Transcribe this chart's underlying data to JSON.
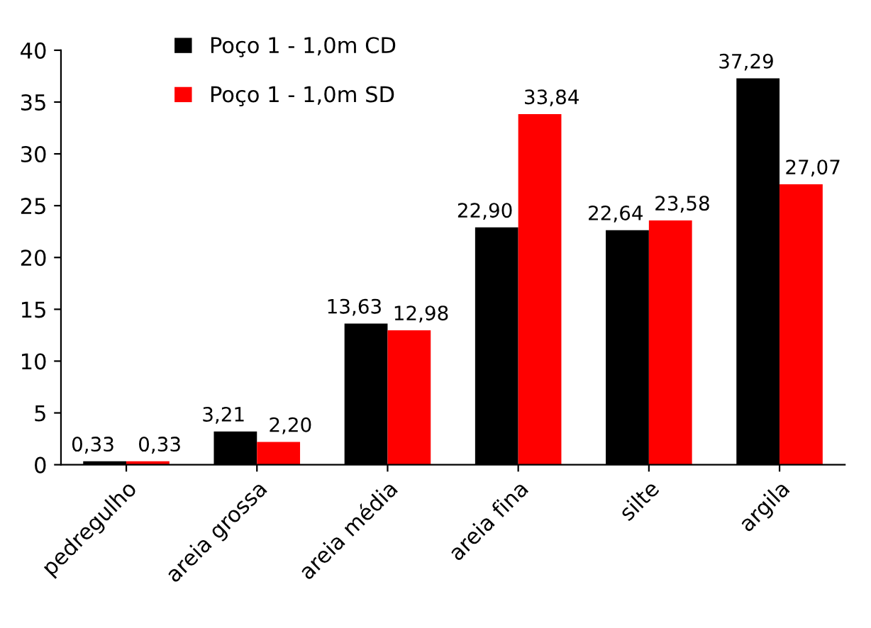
{
  "chart_data": {
    "type": "bar",
    "categories": [
      "pedregulho",
      "areia grossa",
      "areia média",
      "areia fina",
      "silte",
      "argila"
    ],
    "series": [
      {
        "name": "Poço 1 - 1,0m CD",
        "color": "#000000",
        "values": [
          0.33,
          3.21,
          13.63,
          22.9,
          22.64,
          37.29
        ],
        "value_labels": [
          "0,33",
          "3,21",
          "13,63",
          "22,90",
          "22,64",
          "37,29"
        ]
      },
      {
        "name": "Poço 1 - 1,0m SD",
        "color": "#ff0000",
        "values": [
          0.33,
          2.2,
          12.98,
          33.84,
          23.58,
          27.07
        ],
        "value_labels": [
          "0,33",
          "2,20",
          "12,98",
          "33,84",
          "23,58",
          "27,07"
        ]
      }
    ],
    "ylim": [
      0,
      40
    ],
    "yticks": [
      0,
      5,
      10,
      15,
      20,
      25,
      30,
      35,
      40
    ],
    "grid": false,
    "legend": "top left"
  }
}
